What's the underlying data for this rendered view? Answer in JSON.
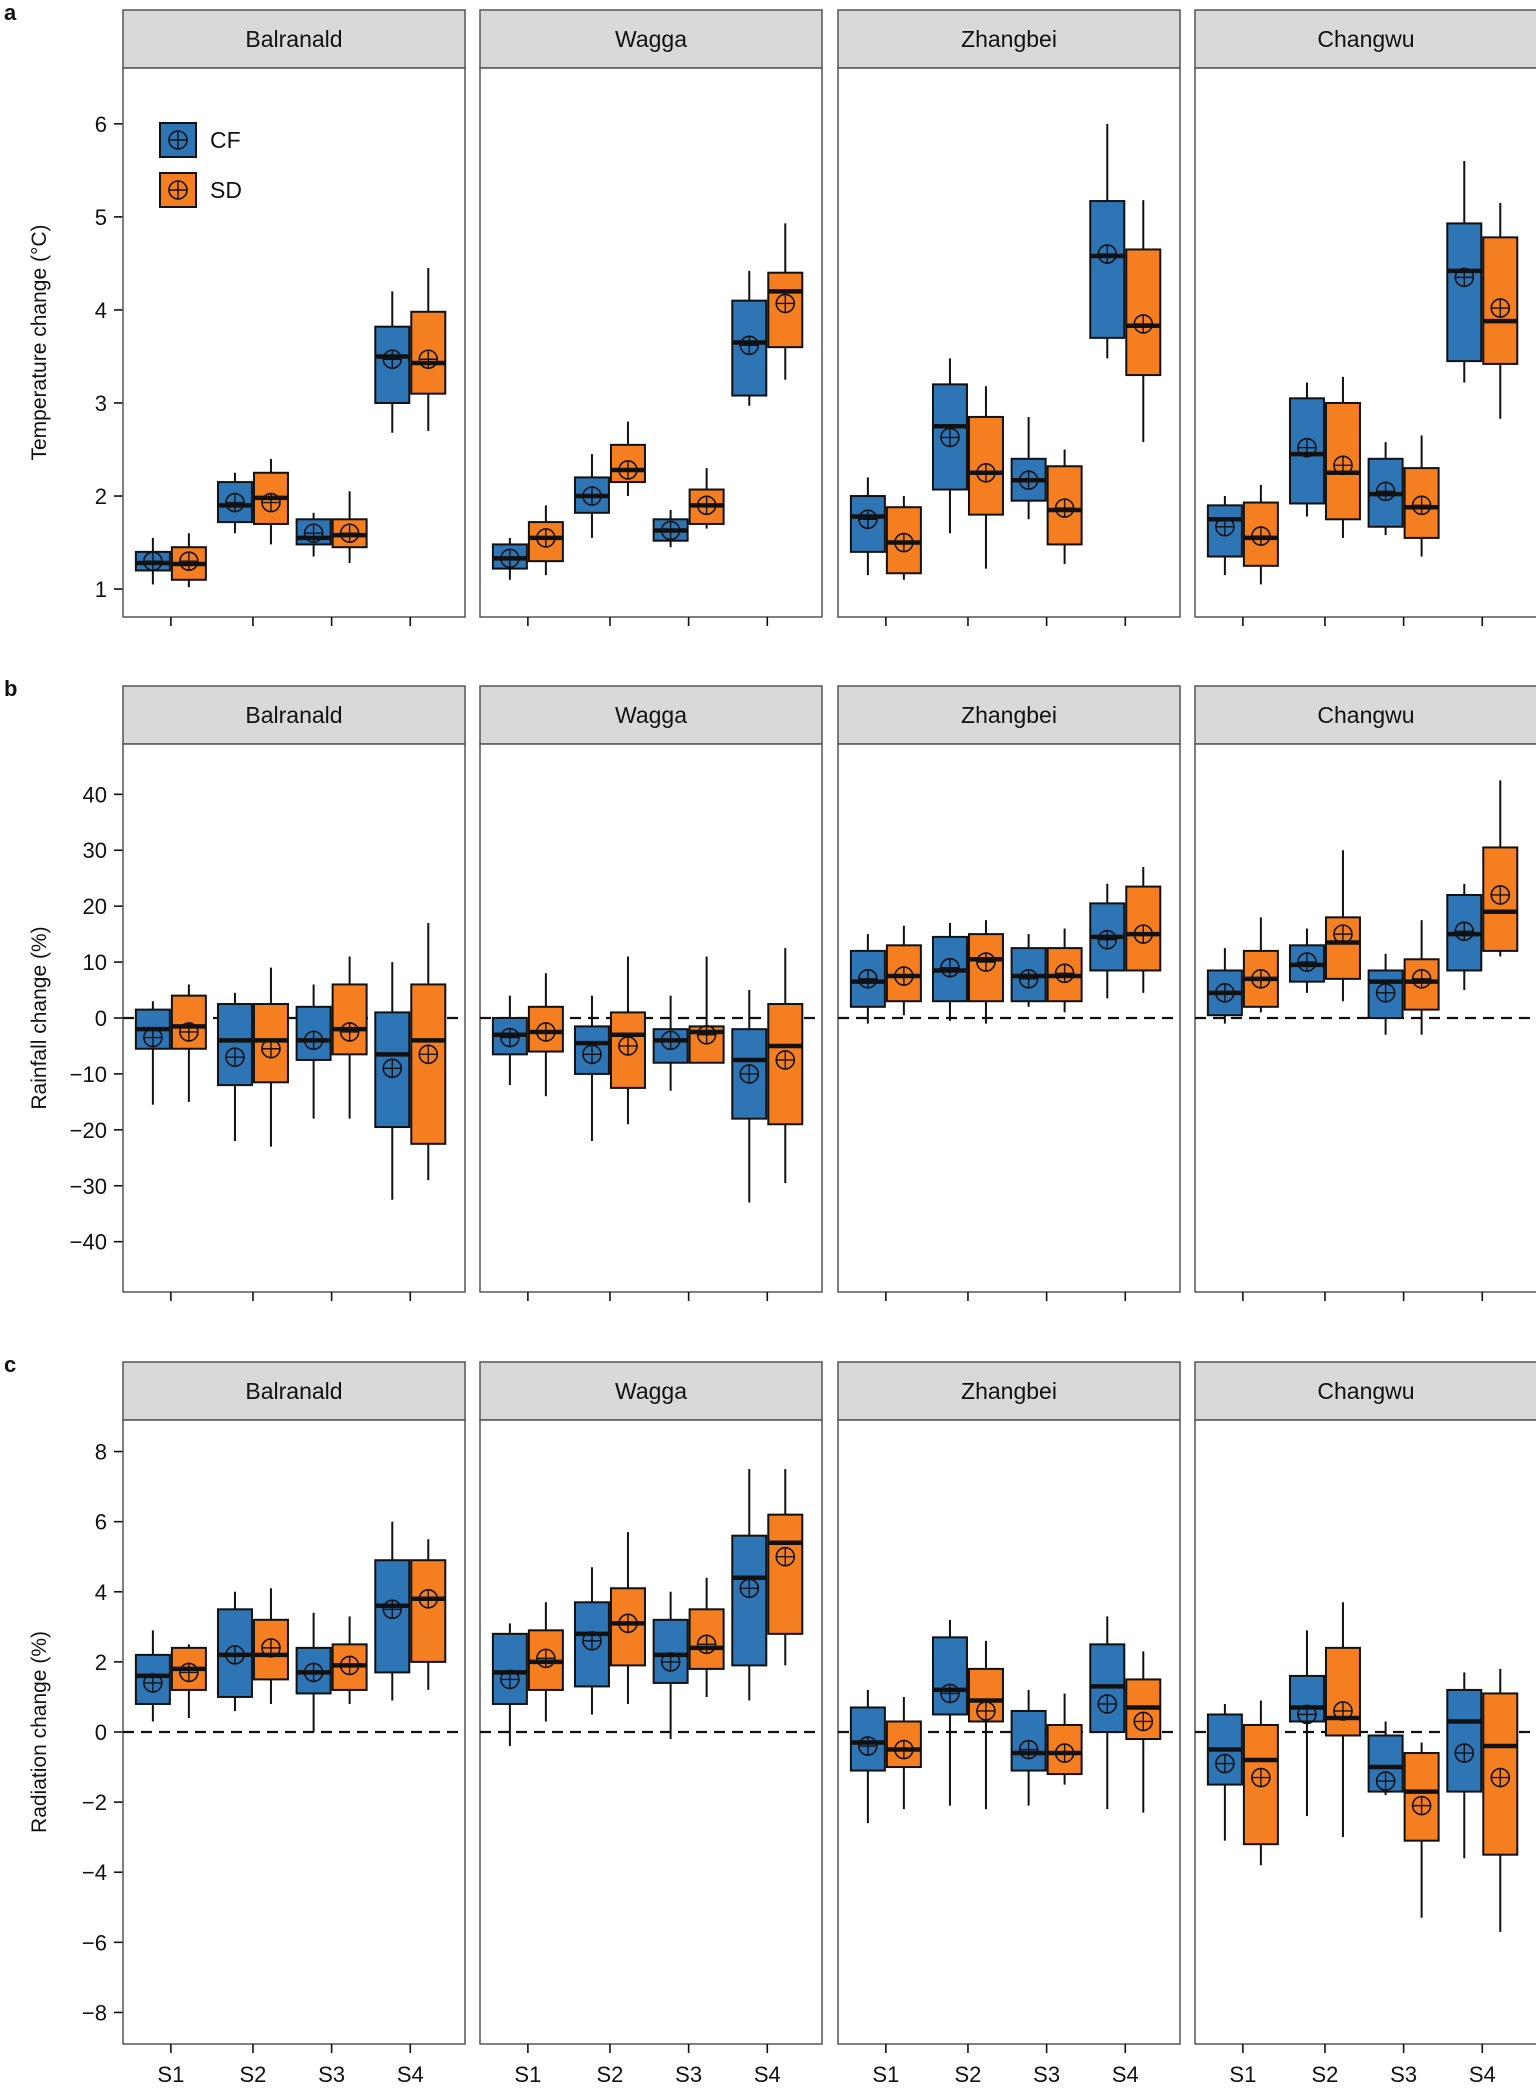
{
  "colors": {
    "cf": "#2E75B6",
    "sd": "#F47E20",
    "strip": "#D9D9D9",
    "frame": "#555555",
    "ink": "#111111"
  },
  "legend": {
    "cf_label": "CF",
    "sd_label": "SD",
    "marker": "circle-plus-icon"
  },
  "chart_data": [
    {
      "panel": "a",
      "type": "box",
      "ylabel": "Temperature change (°C)",
      "ylim": [
        0.7,
        6.6
      ],
      "yticks": [
        1,
        2,
        3,
        4,
        5,
        6
      ],
      "ytick_labels": [
        "1",
        "2",
        "3",
        "4",
        "5",
        "6"
      ],
      "zero_line": false,
      "show_legend": true,
      "show_xlabels": false,
      "categories": [
        "S1",
        "S2",
        "S3",
        "S4"
      ],
      "sites": [
        {
          "name": "Balranald",
          "cf": [
            [
              1.05,
              1.2,
              1.28,
              1.4,
              1.55,
              1.3
            ],
            [
              1.6,
              1.72,
              1.9,
              2.15,
              2.25,
              1.93
            ],
            [
              1.35,
              1.48,
              1.55,
              1.75,
              1.82,
              1.6
            ],
            [
              2.68,
              3.0,
              3.5,
              3.82,
              4.2,
              3.47
            ]
          ],
          "sd": [
            [
              1.02,
              1.1,
              1.27,
              1.45,
              1.6,
              1.3
            ],
            [
              1.48,
              1.7,
              1.98,
              2.25,
              2.4,
              1.93
            ],
            [
              1.28,
              1.45,
              1.58,
              1.75,
              2.05,
              1.6
            ],
            [
              2.7,
              3.1,
              3.43,
              3.98,
              4.45,
              3.47
            ]
          ]
        },
        {
          "name": "Wagga",
          "cf": [
            [
              1.1,
              1.22,
              1.33,
              1.48,
              1.55,
              1.33
            ],
            [
              1.55,
              1.82,
              2.0,
              2.2,
              2.45,
              2.0
            ],
            [
              1.45,
              1.52,
              1.63,
              1.75,
              1.85,
              1.63
            ],
            [
              2.97,
              3.08,
              3.65,
              4.1,
              4.42,
              3.62
            ]
          ],
          "sd": [
            [
              1.15,
              1.3,
              1.55,
              1.72,
              1.9,
              1.55
            ],
            [
              2.0,
              2.15,
              2.28,
              2.55,
              2.8,
              2.28
            ],
            [
              1.65,
              1.7,
              1.9,
              2.07,
              2.3,
              1.9
            ],
            [
              3.25,
              3.6,
              4.2,
              4.4,
              4.93,
              4.07
            ]
          ]
        },
        {
          "name": "Zhangbei",
          "cf": [
            [
              1.15,
              1.4,
              1.78,
              2.0,
              2.2,
              1.75
            ],
            [
              1.6,
              2.07,
              2.75,
              3.2,
              3.48,
              2.63
            ],
            [
              1.75,
              1.95,
              2.17,
              2.4,
              2.85,
              2.17
            ],
            [
              3.48,
              3.7,
              4.58,
              5.17,
              6.0,
              4.6
            ]
          ],
          "sd": [
            [
              1.1,
              1.17,
              1.5,
              1.88,
              2.0,
              1.5
            ],
            [
              1.22,
              1.8,
              2.25,
              2.85,
              3.18,
              2.25
            ],
            [
              1.27,
              1.48,
              1.85,
              2.32,
              2.5,
              1.87
            ],
            [
              2.58,
              3.3,
              3.83,
              4.65,
              5.18,
              3.85
            ]
          ]
        },
        {
          "name": "Changwu",
          "cf": [
            [
              1.15,
              1.35,
              1.75,
              1.9,
              2.0,
              1.67
            ],
            [
              1.78,
              1.92,
              2.45,
              3.05,
              3.22,
              2.52
            ],
            [
              1.58,
              1.67,
              2.02,
              2.4,
              2.58,
              2.05
            ],
            [
              3.22,
              3.45,
              4.42,
              4.93,
              5.6,
              4.35
            ]
          ],
          "sd": [
            [
              1.05,
              1.25,
              1.55,
              1.93,
              2.12,
              1.57
            ],
            [
              1.55,
              1.75,
              2.25,
              3.0,
              3.28,
              2.33
            ],
            [
              1.35,
              1.55,
              1.88,
              2.3,
              2.65,
              1.9
            ],
            [
              2.83,
              3.42,
              3.88,
              4.78,
              5.15,
              4.02
            ]
          ]
        }
      ]
    },
    {
      "panel": "b",
      "type": "box",
      "ylabel": "Rainfall change (%)",
      "ylim": [
        -49,
        49
      ],
      "yticks": [
        -40,
        -30,
        -20,
        -10,
        0,
        10,
        20,
        30,
        40
      ],
      "ytick_labels": [
        "−40",
        "−30",
        "−20",
        "−10",
        "0",
        "10",
        "20",
        "30",
        "40"
      ],
      "zero_line": true,
      "show_legend": false,
      "show_xlabels": false,
      "categories": [
        "S1",
        "S2",
        "S3",
        "S4"
      ],
      "sites": [
        {
          "name": "Balranald",
          "cf": [
            [
              -15.5,
              -5.5,
              -2.0,
              1.5,
              3.0,
              -3.5
            ],
            [
              -22.0,
              -12.0,
              -4.0,
              2.5,
              4.5,
              -7.0
            ],
            [
              -18.0,
              -7.5,
              -4.0,
              2.0,
              6.0,
              -4.0
            ],
            [
              -32.5,
              -19.5,
              -6.5,
              1.0,
              10.0,
              -9.0
            ]
          ],
          "sd": [
            [
              -15.0,
              -5.5,
              -1.5,
              4.0,
              6.0,
              -2.5
            ],
            [
              -23.0,
              -11.5,
              -4.0,
              2.5,
              9.0,
              -5.5
            ],
            [
              -18.0,
              -6.5,
              -2.0,
              6.0,
              11.0,
              -2.5
            ],
            [
              -29.0,
              -22.5,
              -4.0,
              6.0,
              17.0,
              -6.5
            ]
          ]
        },
        {
          "name": "Wagga",
          "cf": [
            [
              -12.0,
              -6.5,
              -3.0,
              0.0,
              4.0,
              -3.5
            ],
            [
              -22.0,
              -10.0,
              -4.5,
              -1.5,
              4.0,
              -6.5
            ],
            [
              -13.0,
              -8.0,
              -4.0,
              -2.0,
              4.0,
              -4.0
            ],
            [
              -33.0,
              -18.0,
              -7.5,
              -2.0,
              5.0,
              -10.0
            ]
          ],
          "sd": [
            [
              -14.0,
              -6.0,
              -2.5,
              2.0,
              8.0,
              -2.5
            ],
            [
              -19.0,
              -12.5,
              -3.0,
              1.0,
              11.0,
              -5.0
            ],
            [
              -7.0,
              -8.0,
              -2.5,
              -1.5,
              11.0,
              -3.0
            ],
            [
              -29.5,
              -19.0,
              -5.0,
              2.5,
              12.5,
              -7.5
            ]
          ]
        },
        {
          "name": "Zhangbei",
          "cf": [
            [
              -1.0,
              2.0,
              6.5,
              12.0,
              15.0,
              7.0
            ],
            [
              -0.5,
              3.0,
              8.5,
              14.5,
              17.0,
              9.0
            ],
            [
              2.0,
              3.0,
              7.5,
              12.5,
              15.0,
              7.0
            ],
            [
              3.5,
              8.5,
              14.5,
              20.5,
              24.0,
              14.0
            ]
          ],
          "sd": [
            [
              0.5,
              3.0,
              7.5,
              13.0,
              16.5,
              7.5
            ],
            [
              -1.0,
              3.0,
              10.5,
              15.0,
              17.5,
              10.0
            ],
            [
              1.0,
              3.0,
              7.5,
              12.5,
              16.0,
              8.0
            ],
            [
              4.5,
              8.5,
              15.0,
              23.5,
              27.0,
              15.0
            ]
          ]
        },
        {
          "name": "Changwu",
          "cf": [
            [
              -1.0,
              0.5,
              4.5,
              8.5,
              12.5,
              4.5
            ],
            [
              4.5,
              6.5,
              9.5,
              13.0,
              16.0,
              10.0
            ],
            [
              -3.0,
              0.0,
              6.5,
              8.5,
              11.5,
              4.5
            ],
            [
              5.0,
              8.5,
              15.0,
              22.0,
              24.0,
              15.5
            ]
          ],
          "sd": [
            [
              1.0,
              2.0,
              7.0,
              12.0,
              18.0,
              7.0
            ],
            [
              3.0,
              7.0,
              13.5,
              18.0,
              30.0,
              15.0
            ],
            [
              -3.0,
              1.5,
              6.5,
              10.5,
              17.5,
              7.0
            ],
            [
              11.0,
              12.0,
              19.0,
              30.5,
              42.5,
              22.0
            ]
          ]
        }
      ]
    },
    {
      "panel": "c",
      "type": "box",
      "ylabel": "Radiation change (%)",
      "ylim": [
        -8.9,
        8.9
      ],
      "yticks": [
        -8,
        -6,
        -4,
        -2,
        0,
        2,
        4,
        6,
        8
      ],
      "ytick_labels": [
        "−8",
        "−6",
        "−4",
        "−2",
        "0",
        "2",
        "4",
        "6",
        "8"
      ],
      "zero_line": true,
      "show_legend": false,
      "show_xlabels": true,
      "categories": [
        "S1",
        "S2",
        "S3",
        "S4"
      ],
      "sites": [
        {
          "name": "Balranald",
          "cf": [
            [
              0.3,
              0.8,
              1.6,
              2.2,
              2.9,
              1.4
            ],
            [
              0.6,
              1.0,
              2.2,
              3.5,
              4.0,
              2.2
            ],
            [
              0.0,
              1.1,
              1.7,
              2.4,
              3.4,
              1.7
            ],
            [
              0.9,
              1.7,
              3.6,
              4.9,
              6.0,
              3.5
            ]
          ],
          "sd": [
            [
              0.4,
              1.2,
              1.8,
              2.4,
              2.5,
              1.7
            ],
            [
              0.8,
              1.5,
              2.2,
              3.2,
              4.1,
              2.4
            ],
            [
              0.8,
              1.2,
              1.9,
              2.5,
              3.3,
              1.9
            ],
            [
              1.2,
              2.0,
              3.8,
              4.9,
              5.5,
              3.8
            ]
          ]
        },
        {
          "name": "Wagga",
          "cf": [
            [
              -0.4,
              0.8,
              1.7,
              2.8,
              3.1,
              1.5
            ],
            [
              0.5,
              1.3,
              2.8,
              3.7,
              4.7,
              2.6
            ],
            [
              -0.2,
              1.4,
              2.2,
              3.2,
              4.0,
              2.0
            ],
            [
              0.9,
              1.9,
              4.4,
              5.6,
              7.5,
              4.1
            ]
          ],
          "sd": [
            [
              0.3,
              1.2,
              2.0,
              2.9,
              3.7,
              2.1
            ],
            [
              0.8,
              1.9,
              3.1,
              4.1,
              5.7,
              3.1
            ],
            [
              1.0,
              1.8,
              2.4,
              3.5,
              4.4,
              2.5
            ],
            [
              1.9,
              2.8,
              5.4,
              6.2,
              7.5,
              5.0
            ]
          ]
        },
        {
          "name": "Zhangbei",
          "cf": [
            [
              -2.6,
              -1.1,
              -0.3,
              0.7,
              1.2,
              -0.4
            ],
            [
              -2.1,
              0.5,
              1.2,
              2.7,
              3.2,
              1.1
            ],
            [
              -2.1,
              -1.1,
              -0.6,
              0.6,
              1.2,
              -0.5
            ],
            [
              -2.2,
              0.0,
              1.3,
              2.5,
              3.3,
              0.8
            ]
          ],
          "sd": [
            [
              -2.2,
              -1.0,
              -0.5,
              0.3,
              1.0,
              -0.5
            ],
            [
              -2.2,
              0.3,
              0.9,
              1.8,
              2.6,
              0.6
            ],
            [
              -1.5,
              -1.2,
              -0.6,
              0.2,
              1.1,
              -0.6
            ],
            [
              -2.3,
              -0.2,
              0.7,
              1.5,
              2.3,
              0.3
            ]
          ]
        },
        {
          "name": "Changwu",
          "cf": [
            [
              -3.1,
              -1.5,
              -0.5,
              0.5,
              0.8,
              -0.9
            ],
            [
              -2.4,
              0.3,
              0.7,
              1.6,
              2.9,
              0.5
            ],
            [
              -1.8,
              -1.7,
              -1.0,
              -0.1,
              0.3,
              -1.4
            ],
            [
              -3.6,
              -1.7,
              0.3,
              1.2,
              1.7,
              -0.6
            ]
          ],
          "sd": [
            [
              -3.8,
              -3.2,
              -0.8,
              0.2,
              0.9,
              -1.3
            ],
            [
              -3.0,
              -0.1,
              0.4,
              2.4,
              3.7,
              0.6
            ],
            [
              -5.3,
              -3.1,
              -1.7,
              -0.6,
              -0.3,
              -2.1
            ],
            [
              -5.7,
              -3.5,
              -0.4,
              1.1,
              1.8,
              -1.3
            ]
          ]
        }
      ]
    }
  ]
}
